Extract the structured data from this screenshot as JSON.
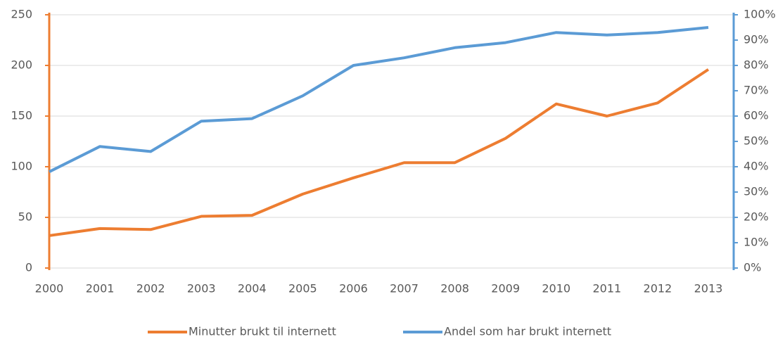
{
  "chart_data": {
    "type": "line",
    "x": [
      2000,
      2001,
      2002,
      2003,
      2004,
      2005,
      2006,
      2007,
      2008,
      2009,
      2010,
      2011,
      2012,
      2013
    ],
    "xlim": [
      2000,
      2013.5
    ],
    "xticks": [
      2000,
      2001,
      2002,
      2003,
      2004,
      2005,
      2006,
      2007,
      2008,
      2009,
      2010,
      2011,
      2012,
      2013
    ],
    "ylim": [
      0,
      250
    ],
    "yticks": [
      0,
      50,
      100,
      150,
      200,
      250
    ],
    "y2lim": [
      0,
      100
    ],
    "y2ticks": [
      {
        "value": 0,
        "label": "0%"
      },
      {
        "value": 10,
        "label": "10%"
      },
      {
        "value": 20,
        "label": "20%"
      },
      {
        "value": 30,
        "label": "30%"
      },
      {
        "value": 40,
        "label": "40%"
      },
      {
        "value": 50,
        "label": "50%"
      },
      {
        "value": 60,
        "label": "60%"
      },
      {
        "value": 70,
        "label": "70%"
      },
      {
        "value": 80,
        "label": "80%"
      },
      {
        "value": 90,
        "label": "90%"
      },
      {
        "value": 100,
        "label": "100%"
      }
    ],
    "grid": true,
    "legend": "bottom",
    "series": [
      {
        "name": "Minutter brukt til internett",
        "color": "#ED7D31",
        "values": [
          32,
          39,
          38,
          51,
          52,
          73,
          89,
          104,
          104,
          128,
          162,
          150,
          163,
          196
        ]
      },
      {
        "name": "Andel som har brukt internett",
        "color": "#5B9BD5",
        "axis": "y2",
        "values": [
          38,
          48,
          46,
          58,
          59,
          68,
          80,
          83,
          87,
          89,
          93,
          92,
          93,
          95
        ]
      }
    ]
  }
}
